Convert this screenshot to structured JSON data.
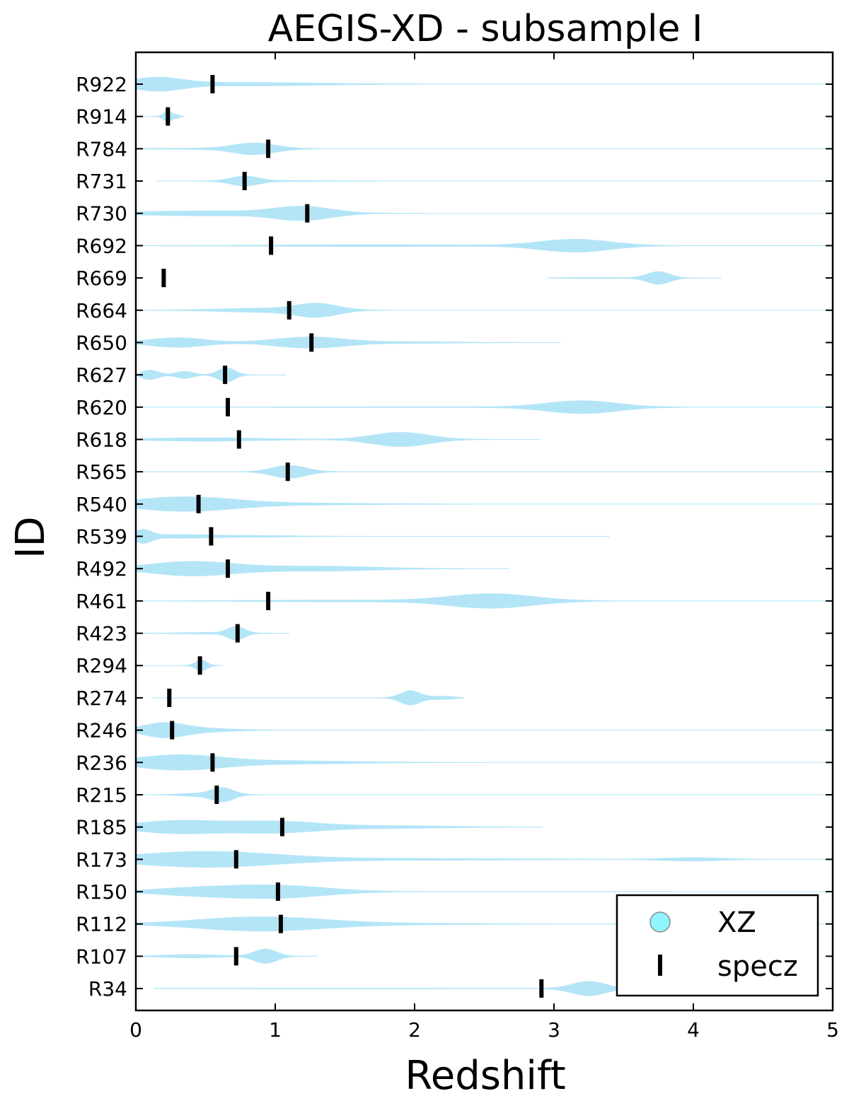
{
  "chart_data": {
    "type": "violin",
    "title": "AEGIS-XD - subsample I",
    "xlabel": "Redshift",
    "ylabel": "ID",
    "xlim": [
      0,
      5
    ],
    "xticks": [
      "0",
      "1",
      "2",
      "3",
      "4",
      "5"
    ],
    "violin_color": "#b3e5f7",
    "specz_color": "#000000",
    "legend": {
      "location": "bottom-right",
      "entries": [
        {
          "label": "XZ",
          "marker": "circle",
          "color": "#8ff5ff"
        },
        {
          "label": "specz",
          "marker": "vertical-bar",
          "color": "#000000"
        }
      ]
    },
    "objects": [
      {
        "id": "R922",
        "specz": 0.55,
        "range": [
          0,
          5
        ],
        "components": [
          [
            0.15,
            0.18,
            0.4
          ],
          [
            0.8,
            0.5,
            0.1
          ]
        ]
      },
      {
        "id": "R914",
        "specz": 0.23,
        "range": [
          0.05,
          0.35
        ],
        "components": [
          [
            0.23,
            0.03,
            0.35
          ],
          [
            0.3,
            0.02,
            0.08
          ]
        ]
      },
      {
        "id": "R784",
        "specz": 0.95,
        "range": [
          0.05,
          5
        ],
        "components": [
          [
            0.85,
            0.15,
            0.35
          ],
          [
            0.5,
            0.4,
            0.03
          ]
        ]
      },
      {
        "id": "R731",
        "specz": 0.78,
        "range": [
          0.15,
          5
        ],
        "components": [
          [
            0.78,
            0.1,
            0.3
          ],
          [
            1.1,
            0.3,
            0.02
          ]
        ]
      },
      {
        "id": "R730",
        "specz": 1.23,
        "range": [
          0,
          5
        ],
        "components": [
          [
            1.2,
            0.2,
            0.4
          ],
          [
            0.5,
            0.5,
            0.15
          ]
        ]
      },
      {
        "id": "R692",
        "specz": 0.97,
        "range": [
          0.05,
          5
        ],
        "components": [
          [
            3.15,
            0.25,
            0.4
          ],
          [
            1.7,
            0.7,
            0.05
          ]
        ]
      },
      {
        "id": "R669",
        "specz": 0.2,
        "range": [
          2.95,
          4.2
        ],
        "components": [
          [
            3.75,
            0.08,
            0.4
          ],
          [
            3.3,
            0.2,
            0.03
          ]
        ]
      },
      {
        "id": "R664",
        "specz": 1.1,
        "range": [
          0,
          5
        ],
        "components": [
          [
            1.3,
            0.15,
            0.4
          ],
          [
            0.9,
            0.3,
            0.12
          ]
        ]
      },
      {
        "id": "R650",
        "specz": 1.26,
        "range": [
          0,
          3.05
        ],
        "components": [
          [
            1.25,
            0.25,
            0.35
          ],
          [
            0.3,
            0.2,
            0.3
          ],
          [
            2.0,
            0.3,
            0.04
          ]
        ]
      },
      {
        "id": "R627",
        "specz": 0.64,
        "range": [
          0.02,
          1.08
        ],
        "components": [
          [
            0.65,
            0.06,
            0.45
          ],
          [
            0.35,
            0.06,
            0.22
          ],
          [
            0.1,
            0.06,
            0.3
          ]
        ]
      },
      {
        "id": "R620",
        "specz": 0.66,
        "range": [
          0.05,
          5
        ],
        "components": [
          [
            3.2,
            0.25,
            0.4
          ],
          [
            2.0,
            0.8,
            0.02
          ]
        ]
      },
      {
        "id": "R618",
        "specz": 0.74,
        "range": [
          0.05,
          2.9
        ],
        "components": [
          [
            1.9,
            0.2,
            0.45
          ],
          [
            0.5,
            0.4,
            0.1
          ]
        ]
      },
      {
        "id": "R565",
        "specz": 1.09,
        "range": [
          0.05,
          5
        ],
        "components": [
          [
            1.1,
            0.12,
            0.4
          ]
        ]
      },
      {
        "id": "R540",
        "specz": 0.45,
        "range": [
          0,
          5
        ],
        "components": [
          [
            0.35,
            0.35,
            0.45
          ],
          [
            1.2,
            0.5,
            0.05
          ]
        ]
      },
      {
        "id": "R539",
        "specz": 0.54,
        "range": [
          0,
          3.4
        ],
        "components": [
          [
            0.05,
            0.06,
            0.4
          ],
          [
            0.3,
            0.2,
            0.1
          ],
          [
            0.8,
            0.3,
            0.05
          ]
        ]
      },
      {
        "id": "R492",
        "specz": 0.66,
        "range": [
          0,
          2.68
        ],
        "components": [
          [
            0.4,
            0.3,
            0.45
          ],
          [
            1.3,
            0.4,
            0.15
          ]
        ]
      },
      {
        "id": "R461",
        "specz": 0.95,
        "range": [
          0.05,
          5
        ],
        "components": [
          [
            2.55,
            0.3,
            0.45
          ],
          [
            1.5,
            0.6,
            0.05
          ]
        ]
      },
      {
        "id": "R423",
        "specz": 0.73,
        "range": [
          0.05,
          1.1
        ],
        "components": [
          [
            0.72,
            0.06,
            0.4
          ],
          [
            0.5,
            0.2,
            0.04
          ]
        ]
      },
      {
        "id": "R294",
        "specz": 0.46,
        "range": [
          0.05,
          0.63
        ],
        "components": [
          [
            0.47,
            0.04,
            0.35
          ]
        ]
      },
      {
        "id": "R274",
        "specz": 0.24,
        "range": [
          0.12,
          2.35
        ],
        "components": [
          [
            1.97,
            0.07,
            0.45
          ],
          [
            2.2,
            0.08,
            0.1
          ]
        ]
      },
      {
        "id": "R246",
        "specz": 0.26,
        "range": [
          0,
          5
        ],
        "components": [
          [
            0.2,
            0.15,
            0.45
          ],
          [
            0.5,
            0.2,
            0.1
          ]
        ]
      },
      {
        "id": "R236",
        "specz": 0.55,
        "range": [
          0,
          5
        ],
        "components": [
          [
            0.3,
            0.3,
            0.45
          ],
          [
            1.0,
            0.5,
            0.1
          ]
        ]
      },
      {
        "id": "R215",
        "specz": 0.58,
        "range": [
          0.05,
          5
        ],
        "components": [
          [
            0.62,
            0.08,
            0.45
          ],
          [
            0.4,
            0.1,
            0.08
          ]
        ]
      },
      {
        "id": "R185",
        "specz": 1.05,
        "range": [
          0,
          2.92
        ],
        "components": [
          [
            0.3,
            0.3,
            0.4
          ],
          [
            1.0,
            0.3,
            0.35
          ],
          [
            1.8,
            0.4,
            0.08
          ]
        ]
      },
      {
        "id": "R173",
        "specz": 0.72,
        "range": [
          0,
          5
        ],
        "components": [
          [
            0.5,
            0.5,
            0.5
          ],
          [
            4.0,
            0.2,
            0.1
          ],
          [
            2.0,
            0.7,
            0.05
          ]
        ]
      },
      {
        "id": "R150",
        "specz": 1.02,
        "range": [
          0,
          5
        ],
        "components": [
          [
            1.0,
            0.35,
            0.4
          ],
          [
            0.4,
            0.3,
            0.2
          ]
        ]
      },
      {
        "id": "R112",
        "specz": 1.04,
        "range": [
          0,
          5
        ],
        "components": [
          [
            0.9,
            0.45,
            0.45
          ],
          [
            2.0,
            0.5,
            0.03
          ]
        ]
      },
      {
        "id": "R107",
        "specz": 0.72,
        "range": [
          0.05,
          1.3
        ],
        "components": [
          [
            0.93,
            0.08,
            0.45
          ],
          [
            0.4,
            0.2,
            0.1
          ]
        ]
      },
      {
        "id": "R34",
        "specz": 2.91,
        "range": [
          0.13,
          3.5
        ],
        "components": [
          [
            3.25,
            0.12,
            0.45
          ],
          [
            1.5,
            1.0,
            0.02
          ]
        ]
      }
    ]
  }
}
